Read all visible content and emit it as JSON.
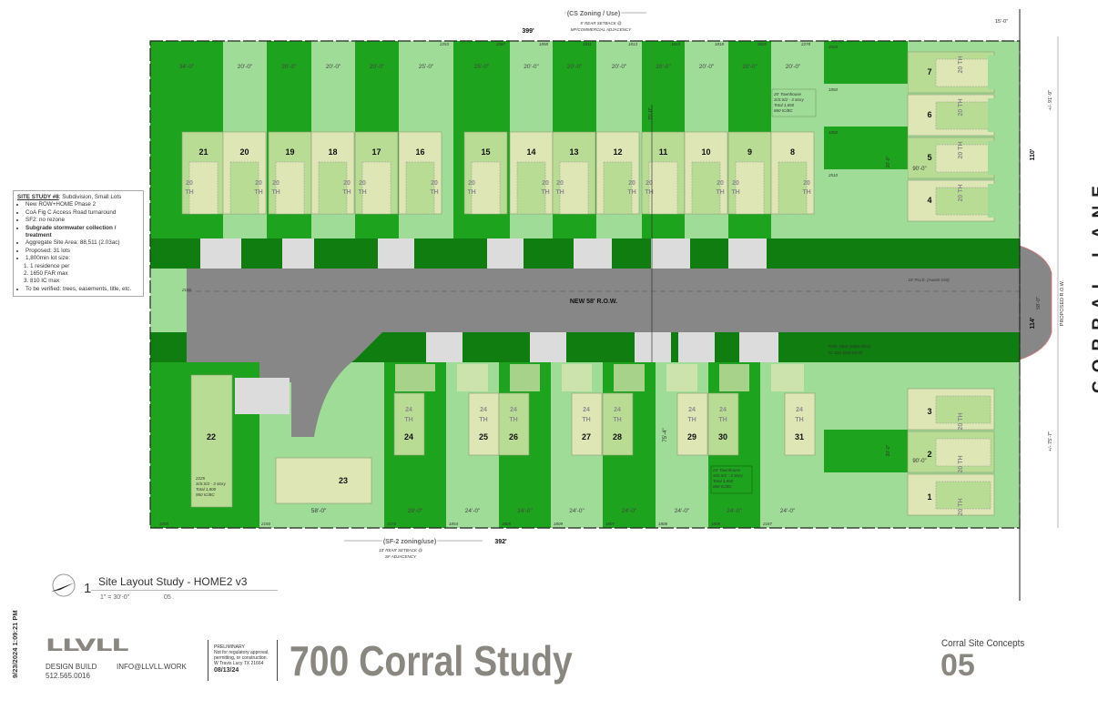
{
  "top_heading": {
    "zoning": "(CS Zoning / Use)",
    "setback": "5' REAR SETBACK @",
    "adjacency": "MF/COMMERCIAL ADJACENCY",
    "length": "399'"
  },
  "bottom_heading": {
    "zoning": "(SF-2 zoning/use)",
    "setback": "10' REAR SETBACK @",
    "adjacency": "SF ADJACENCY",
    "length": "392'"
  },
  "right_dims": {
    "setback": "15'-0\"",
    "north_depth": "+/- 91'-9\"",
    "north_width": "110'",
    "south_depth": "+/- 75'-7\"",
    "row_width": "58'-0\"",
    "row_label": "PROPOSED R.O.W.",
    "frontage": "114'"
  },
  "street": "CORRAL LANE",
  "road": {
    "label": "NEW 58' R.O.W.",
    "pue": "10' P.U.E. (Austin GIS)",
    "far_note1": "FAR: 1650 (1650 MAX)",
    "far_note2": "IC: 810 (810 MAX)"
  },
  "top_lots": [
    {
      "num": "21",
      "width": "34'-0\"",
      "type": "20 TH"
    },
    {
      "num": "20",
      "width": "20'-0\"",
      "type": "20 TH"
    },
    {
      "num": "19",
      "width": "20'-0\"",
      "type": "20 TH"
    },
    {
      "num": "18",
      "width": "20'-0\"",
      "type": "20 TH"
    },
    {
      "num": "17",
      "width": "20'-0\"",
      "type": "20 TH"
    },
    {
      "num": "16",
      "width": "25'-0\"",
      "type": "20 TH",
      "area": "2253"
    },
    {
      "num": "15",
      "width": "25'-0\"",
      "type": "20 TH",
      "area": "2267"
    },
    {
      "num": "14",
      "width": "20'-0\"",
      "type": "20 TH",
      "area": "1858"
    },
    {
      "num": "13",
      "width": "20'-0\"",
      "type": "20 TH",
      "area": "1811"
    },
    {
      "num": "12",
      "width": "20'-0\"",
      "type": "20 TH",
      "area": "1813"
    },
    {
      "num": "11",
      "width": "20'-0\"",
      "type": "20 TH",
      "area": "1815"
    },
    {
      "num": "10",
      "width": "20'-0\"",
      "type": "20 TH",
      "area": "1818"
    },
    {
      "num": "9",
      "width": "20'-0\"",
      "type": "20 TH",
      "area": "1820"
    },
    {
      "num": "8",
      "width": "20'-0\"",
      "type": "20 TH",
      "area": "2278"
    }
  ],
  "top_note": [
    "20' Townhouse",
    "S/S:S/2 - 3 story",
    "Total 1,650",
    "860 IC/BC"
  ],
  "top_depth": "75'-0\"",
  "bottom_lots": [
    {
      "num": "24",
      "width": "29'-0\"",
      "type": "24 TH",
      "area": "2176"
    },
    {
      "num": "25",
      "width": "24'-0\"",
      "type": "24 TH",
      "area": "1854"
    },
    {
      "num": "26",
      "width": "24'-0\"",
      "type": "24 TH",
      "area": "1805"
    },
    {
      "num": "27",
      "width": "24'-0\"",
      "type": "24 TH",
      "area": "1809"
    },
    {
      "num": "28",
      "width": "24'-0\"",
      "type": "24 TH",
      "area": "1807"
    },
    {
      "num": "29",
      "width": "24'-0\"",
      "type": "24 TH",
      "area": "1806"
    },
    {
      "num": "30",
      "width": "24'-0\"",
      "type": "24 TH",
      "area": "1808"
    },
    {
      "num": "31",
      "width": "24'-0\"",
      "type": "24 TH",
      "area": "2187"
    }
  ],
  "bottom_note": [
    "24' Townhouse",
    "S/S:S/2 - 3 story",
    "Total 1,650",
    "860 IC/BC"
  ],
  "bottom_depth": "75'-4\"",
  "left_lots": {
    "lot22": {
      "num": "22",
      "area": "3255",
      "note": [
        "2225",
        "S/S:S/2 - 3 story",
        "Total 1,800",
        "950 IC/BC"
      ]
    },
    "lot23": {
      "num": "23",
      "area": "2150",
      "width": "58'-0\""
    },
    "left_area": "2166"
  },
  "right_lots_north": [
    {
      "num": "7",
      "type": "20 TH",
      "area": "2520"
    },
    {
      "num": "6",
      "type": "20 TH",
      "area": "1850"
    },
    {
      "num": "5",
      "type": "20 TH",
      "area": "1850"
    },
    {
      "num": "4",
      "type": "20 TH",
      "area": "2510"
    }
  ],
  "right_lots_south": [
    {
      "num": "3",
      "type": "20 TH"
    },
    {
      "num": "2",
      "type": "20 TH"
    },
    {
      "num": "1",
      "type": "20 TH"
    }
  ],
  "right_dim_width": "20'-0\"",
  "right_dim_depth": "90'-0\"",
  "notes": {
    "title": "SITE STUDY #8",
    "subtitle": ": Subdivision, Small Lots",
    "items": [
      "New ROW+HOME Phase 2",
      "CoA Fig C Access Road turnaround",
      "SF2: no rezone",
      "Subgrade stormwater collection / treatment",
      "Aggregate Site Area: 88,511 (2.03ac)",
      "Proposed: 31 lots",
      "1,800min lot size:"
    ],
    "sub_items": [
      "1 residence per",
      "1650 FAR max",
      "810 IC max"
    ],
    "last": "To be verified: trees, easements, title, etc."
  },
  "drawing": {
    "number": "1",
    "title": "Site Layout Study - HOME2 v3",
    "scale": "1\" = 30'-0\"",
    "sheet_ref": "05"
  },
  "title_block": {
    "timestamp": "9/23/2024 1:09:21 PM",
    "logo": "LLVLL",
    "design_build": "DESIGN BUILD",
    "email": "INFO@LLVLL.WORK",
    "phone": "512.565.0016",
    "prelim": [
      "PRELIMINARY",
      "Not for regulatory approval,",
      "permitting, or construction.",
      "W Travis Lucy  TX 21664"
    ],
    "date": "08/13/24",
    "project": "700 Corral Study",
    "set": "Corral Site Concepts",
    "sheet": "05"
  },
  "colors": {
    "dark_green": "#1ea31e",
    "light_green": "#9fdc98",
    "band_green": "#0f7d0f",
    "road": "#878787",
    "driveway": "#dcdcdc",
    "house_pale": "#dfe6b6",
    "house_green": "#b8dc93",
    "title_gray": "#8a8680"
  }
}
